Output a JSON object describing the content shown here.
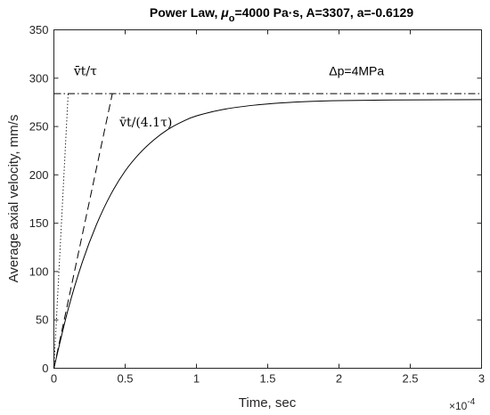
{
  "chart_data": {
    "type": "line",
    "title_parts": [
      "Power Law, ",
      "μ",
      "o",
      "=4000 Pa·s, A=3307, a=-0.6129"
    ],
    "xlabel": "Time, sec",
    "ylabel": "Average axial velocity, mm/s",
    "x_exponent": "×10",
    "x_exponent_power": "-4",
    "xlim": [
      0,
      3
    ],
    "ylim": [
      0,
      350
    ],
    "x_ticks": [
      0,
      0.5,
      1,
      1.5,
      2,
      2.5,
      3
    ],
    "x_tick_labels": [
      "0",
      "0.5",
      "1",
      "1.5",
      "2",
      "2.5",
      "3"
    ],
    "y_ticks": [
      0,
      50,
      100,
      150,
      200,
      250,
      300,
      350
    ],
    "y_tick_labels": [
      "0",
      "50",
      "100",
      "150",
      "200",
      "250",
      "300",
      "350"
    ],
    "grid": false,
    "series": [
      {
        "style": "solid",
        "x": [
          0,
          0.1,
          0.2,
          0.3,
          0.4,
          0.5,
          0.6,
          0.7,
          0.8,
          0.9,
          1.0,
          1.2,
          1.4,
          1.6,
          1.8,
          2.0,
          2.3,
          2.6,
          3.0
        ],
        "y": [
          0,
          61,
          110,
          149,
          180,
          204,
          222,
          236,
          247,
          255,
          261,
          268,
          272,
          274.5,
          276,
          276.8,
          277.3,
          277.6,
          277.8
        ]
      },
      {
        "style": "dotted",
        "x": [
          0,
          0.1
        ],
        "y": [
          0,
          284
        ]
      },
      {
        "style": "dashed",
        "x": [
          0,
          0.41
        ],
        "y": [
          0,
          284
        ]
      },
      {
        "style": "dashdot",
        "x": [
          0,
          3
        ],
        "y": [
          284,
          284
        ]
      }
    ],
    "annotations": [
      {
        "text": "v̄t/τ",
        "x": 0.14,
        "y": 303
      },
      {
        "text": "v̄t/(4.1τ)",
        "x": 0.46,
        "y": 250
      },
      {
        "text": "Δp=4MPa",
        "x": 1.93,
        "y": 303
      }
    ]
  }
}
